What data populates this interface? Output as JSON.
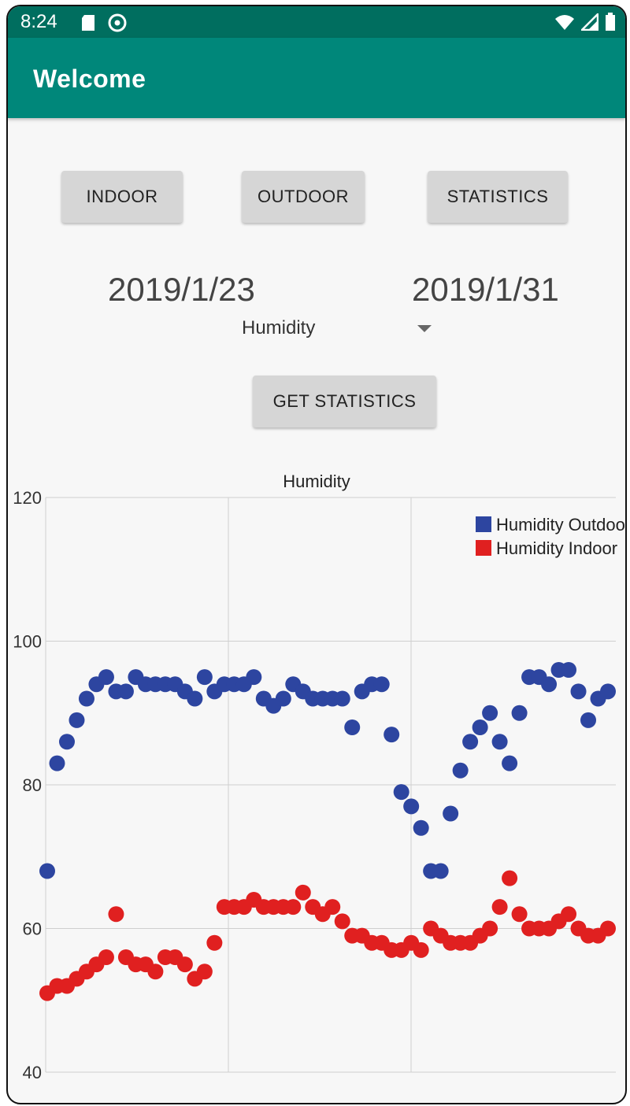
{
  "status_bar": {
    "time": "8:24",
    "left_icons": [
      "sd-card-icon",
      "data-saver-icon"
    ],
    "right_icons": [
      "wifi-icon",
      "cellular-signal-icon",
      "battery-icon"
    ]
  },
  "app_bar": {
    "title": "Welcome"
  },
  "buttons": {
    "indoor": "INDOOR",
    "outdoor": "OUTDOOR",
    "statistics": "STATISTICS",
    "get_statistics": "GET STATISTICS"
  },
  "dates": {
    "start": "2019/1/23",
    "end": "2019/1/31"
  },
  "spinner": {
    "selected": "Humidity"
  },
  "colors": {
    "status_bar": "#006e5f",
    "app_bar": "#00877a",
    "outdoor": "#2d45a0",
    "indoor": "#e02020"
  },
  "chart_data": {
    "type": "scatter",
    "title": "Humidity",
    "ylim": [
      40,
      120
    ],
    "yticks": [
      "40",
      "60",
      "80",
      "100",
      "120"
    ],
    "grid": true,
    "legend_position": "top-right",
    "series": [
      {
        "name": "Humidity Outdoor",
        "color": "#2d45a0",
        "values": [
          68,
          83,
          86,
          89,
          92,
          94,
          95,
          93,
          93,
          95,
          94,
          94,
          94,
          94,
          93,
          92,
          95,
          93,
          94,
          94,
          94,
          95,
          92,
          91,
          92,
          94,
          93,
          92,
          92,
          92,
          92,
          88,
          93,
          94,
          94,
          87,
          79,
          77,
          74,
          68,
          68,
          76,
          82,
          86,
          88,
          90,
          86,
          83,
          90,
          95,
          95,
          94,
          96,
          96,
          93,
          89,
          92,
          93
        ]
      },
      {
        "name": "Humidity Indoor",
        "color": "#e02020",
        "values": [
          51,
          52,
          52,
          53,
          54,
          55,
          56,
          62,
          56,
          55,
          55,
          54,
          56,
          56,
          55,
          53,
          54,
          58,
          63,
          63,
          63,
          64,
          63,
          63,
          63,
          63,
          65,
          63,
          62,
          63,
          61,
          59,
          59,
          58,
          58,
          57,
          57,
          58,
          57,
          60,
          59,
          58,
          58,
          58,
          59,
          60,
          63,
          67,
          62,
          60,
          60,
          60,
          61,
          62,
          60,
          59,
          59,
          60
        ]
      }
    ]
  }
}
